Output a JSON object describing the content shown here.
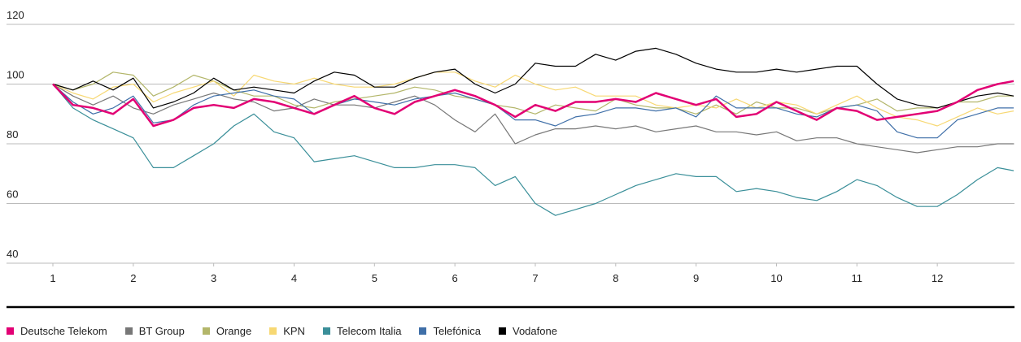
{
  "chart_data": {
    "type": "line",
    "x": [
      1,
      1.25,
      1.5,
      1.75,
      2,
      2.25,
      2.5,
      2.75,
      3,
      3.25,
      3.5,
      3.75,
      4,
      4.25,
      4.5,
      4.75,
      5,
      5.25,
      5.5,
      5.75,
      6,
      6.25,
      6.5,
      6.75,
      7,
      7.25,
      7.5,
      7.75,
      8,
      8.25,
      8.5,
      8.75,
      9,
      9.25,
      9.5,
      9.75,
      10,
      10.25,
      10.5,
      10.75,
      11,
      11.25,
      11.5,
      11.75,
      12,
      12.25,
      12.5,
      12.75,
      12.95
    ],
    "xlim": [
      1,
      12.96
    ],
    "xticks": [
      1,
      2,
      3,
      4,
      5,
      6,
      7,
      8,
      9,
      10,
      11,
      12
    ],
    "ylim": [
      40,
      120
    ],
    "yticks": [
      40,
      60,
      80,
      100,
      120
    ],
    "grid": true,
    "legend": "bottom",
    "series": [
      {
        "name": "Deutsche Telekom",
        "color": "#e20074",
        "values": [
          100,
          93,
          92,
          90,
          95,
          86,
          88,
          92,
          93,
          92,
          95,
          94,
          92,
          90,
          93,
          96,
          92,
          90,
          94,
          96,
          98,
          96,
          93,
          89,
          93,
          91,
          94,
          94,
          95,
          94,
          97,
          95,
          93,
          95,
          89,
          90,
          94,
          91,
          88,
          92,
          91,
          88,
          89,
          90,
          91,
          94,
          98,
          100,
          101
        ]
      },
      {
        "name": "BT Group",
        "color": "#777777",
        "values": [
          100,
          96,
          93,
          96,
          92,
          90,
          93,
          95,
          97,
          95,
          94,
          91,
          92,
          95,
          93,
          93,
          92,
          94,
          96,
          93,
          88,
          84,
          90,
          80,
          83,
          85,
          85,
          86,
          85,
          86,
          84,
          85,
          86,
          84,
          84,
          83,
          84,
          81,
          82,
          82,
          80,
          79,
          78,
          77,
          78,
          79,
          79,
          80,
          80
        ]
      },
      {
        "name": "Orange",
        "color": "#b3b66a",
        "values": [
          100,
          98,
          100,
          104,
          103,
          96,
          99,
          103,
          101,
          98,
          96,
          96,
          93,
          92,
          94,
          95,
          96,
          97,
          99,
          98,
          96,
          95,
          93,
          92,
          90,
          93,
          92,
          91,
          95,
          93,
          92,
          92,
          90,
          93,
          90,
          94,
          92,
          92,
          90,
          92,
          93,
          95,
          91,
          92,
          92,
          94,
          94,
          96,
          96
        ]
      },
      {
        "name": "KPN",
        "color": "#f7d873",
        "values": [
          100,
          97,
          95,
          99,
          100,
          94,
          97,
          99,
          101,
          96,
          103,
          101,
          100,
          102,
          100,
          99,
          99,
          100,
          102,
          104,
          104,
          101,
          99,
          103,
          100,
          98,
          99,
          96,
          96,
          96,
          93,
          92,
          93,
          92,
          95,
          92,
          94,
          93,
          90,
          93,
          96,
          92,
          89,
          88,
          86,
          89,
          92,
          90,
          91
        ]
      },
      {
        "name": "Telecom Italia",
        "color": "#3a8f99",
        "values": [
          100,
          92,
          88,
          85,
          82,
          72,
          72,
          76,
          80,
          86,
          90,
          84,
          82,
          74,
          75,
          76,
          74,
          72,
          72,
          73,
          73,
          72,
          66,
          69,
          60,
          56,
          58,
          60,
          63,
          66,
          68,
          70,
          69,
          69,
          64,
          65,
          64,
          62,
          61,
          64,
          68,
          66,
          62,
          59,
          59,
          63,
          68,
          72,
          71
        ]
      },
      {
        "name": "Telefónica",
        "color": "#3f6fa8",
        "values": [
          100,
          94,
          90,
          92,
          96,
          87,
          88,
          93,
          96,
          97,
          98,
          96,
          95,
          90,
          93,
          95,
          94,
          93,
          95,
          96,
          97,
          95,
          93,
          88,
          88,
          86,
          89,
          90,
          92,
          92,
          91,
          92,
          89,
          96,
          92,
          92,
          92,
          90,
          89,
          92,
          93,
          91,
          84,
          82,
          82,
          88,
          90,
          92,
          92
        ]
      },
      {
        "name": "Vodafone",
        "color": "#000000",
        "values": [
          100,
          98,
          101,
          98,
          102,
          92,
          94,
          97,
          102,
          98,
          99,
          98,
          97,
          101,
          104,
          103,
          99,
          99,
          102,
          104,
          105,
          100,
          97,
          100,
          107,
          106,
          106,
          110,
          108,
          111,
          112,
          110,
          107,
          105,
          104,
          104,
          105,
          104,
          105,
          106,
          106,
          100,
          95,
          93,
          92,
          94,
          96,
          97,
          96
        ]
      }
    ]
  }
}
